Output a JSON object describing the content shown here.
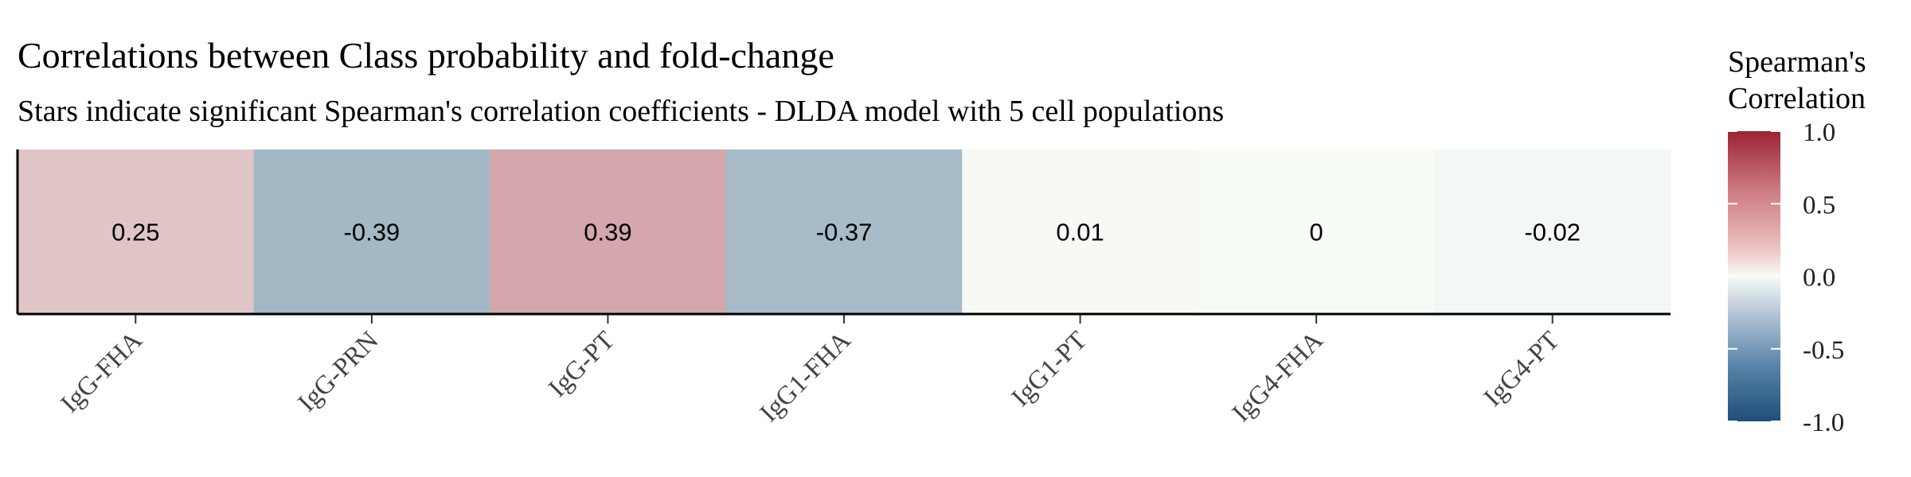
{
  "chart_data": {
    "type": "heatmap",
    "title": "Correlations between Class probability and fold-change",
    "subtitle": "Stars indicate significant Spearman's correlation coefficients - DLDA model with 5 cell populations",
    "xlabel": "",
    "ylabel": "",
    "categories": [
      "IgG-FHA",
      "IgG-PRN",
      "IgG-PT",
      "IgG1-FHA",
      "IgG1-PT",
      "IgG4-FHA",
      "IgG4-PT"
    ],
    "values": [
      0.25,
      -0.39,
      0.39,
      -0.37,
      0.01,
      0,
      -0.02
    ],
    "value_labels": [
      "0.25",
      "-0.39",
      "0.39",
      "-0.37",
      "0.01",
      "0",
      "-0.02"
    ],
    "legend": {
      "title_lines": [
        "Spearman's",
        "Correlation"
      ],
      "ticks": [
        1.0,
        0.5,
        0.0,
        -0.5,
        -1.0
      ],
      "tick_labels": [
        "1.0",
        "0.5",
        "0.0",
        "-0.5",
        "-1.0"
      ],
      "range": [
        -1,
        1
      ],
      "position": "right"
    },
    "colors": {
      "low": "#1f4e79",
      "mid": "#f7fbf6",
      "high": "#9b2335"
    }
  }
}
